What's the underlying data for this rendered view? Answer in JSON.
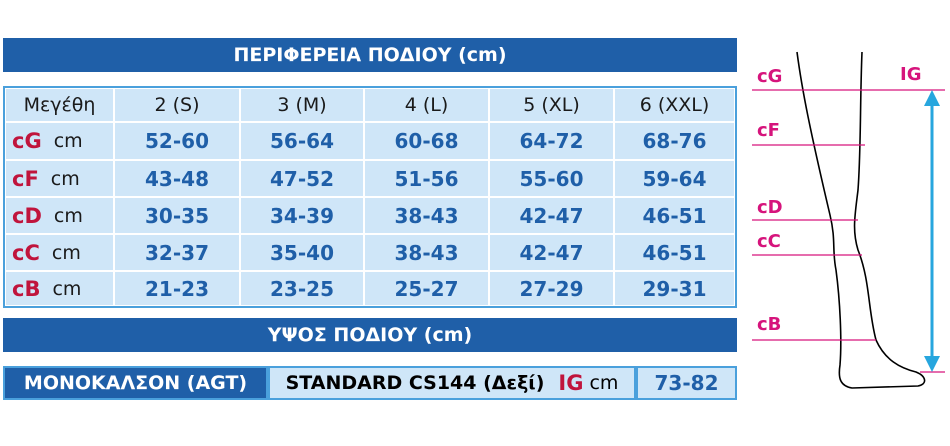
{
  "title": "ΠΕΡΙΦΕΡΕΙΑ ΠΟΔΙΟΥ (cm)",
  "table": {
    "header": [
      "Μεγέθη",
      "2 (S)",
      "3 (M)",
      "4 (L)",
      "5 (XL)",
      "6 (XXL)"
    ],
    "rows": [
      {
        "code": "cG",
        "unit": "cm",
        "values": [
          "52-60",
          "56-64",
          "60-68",
          "64-72",
          "68-76"
        ]
      },
      {
        "code": "cF",
        "unit": "cm",
        "values": [
          "43-48",
          "47-52",
          "51-56",
          "55-60",
          "59-64"
        ]
      },
      {
        "code": "cD",
        "unit": "cm",
        "values": [
          "30-35",
          "34-39",
          "38-43",
          "42-47",
          "46-51"
        ]
      },
      {
        "code": "cC",
        "unit": "cm",
        "values": [
          "32-37",
          "35-40",
          "38-43",
          "42-47",
          "46-51"
        ]
      },
      {
        "code": "cB",
        "unit": "cm",
        "values": [
          "21-23",
          "23-25",
          "25-27",
          "27-29",
          "29-31"
        ]
      }
    ]
  },
  "subtitle": "ΥΨΟΣ ΠΟΔΙΟΥ (cm)",
  "footer": {
    "product": "ΜΟΝΟΚΑΛΣΟΝ (AGT)",
    "model": "STANDARD CS144 (Δεξί)",
    "code": "IG",
    "unit": "cm",
    "value": "73-82"
  },
  "diagram": {
    "labels": [
      "cG",
      "cF",
      "cD",
      "cC",
      "cB"
    ],
    "length_label": "IG"
  }
}
